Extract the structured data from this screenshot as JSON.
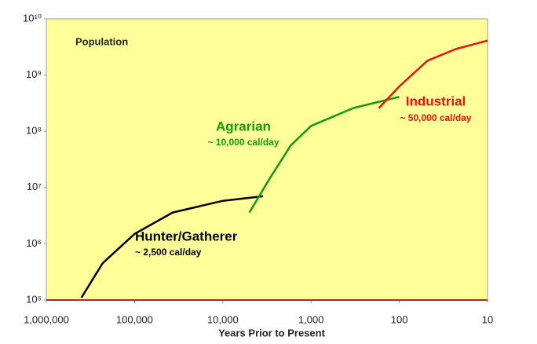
{
  "chart_data": {
    "type": "line",
    "x_label": "Years Prior to Present",
    "xscale": "log",
    "yscale": "log",
    "x_reversed": true,
    "xlim": [
      1000000,
      10
    ],
    "xticks": [
      {
        "value": 1000000,
        "label": "1,000,000"
      },
      {
        "value": 100000,
        "label": "100,000"
      },
      {
        "value": 10000,
        "label": "10,000"
      },
      {
        "value": 1000,
        "label": "1,000"
      },
      100,
      10
    ],
    "ylim": [
      100000,
      10000000000
    ],
    "yticks": [
      {
        "value": 100000,
        "label": "10⁵"
      },
      {
        "value": 1000000,
        "label": "10⁶"
      },
      {
        "value": 10000000,
        "label": "10⁷"
      },
      {
        "value": 100000000,
        "label": "10⁸"
      },
      {
        "value": 1000000000,
        "label": "10⁹"
      },
      {
        "value": 10000000000,
        "label": "10¹⁰"
      }
    ],
    "plot_background": "#ffff99",
    "series": [
      {
        "name": "Hunter/Gatherer",
        "color": "#000000",
        "x": [
          400000,
          230000,
          100000,
          37000,
          10000,
          3500
        ],
        "values": [
          110000,
          450000,
          1500000,
          3600000,
          5800000,
          7000000
        ]
      },
      {
        "name": "Agrarian",
        "color": "#119911",
        "x": [
          5000,
          2900,
          1700,
          1000,
          330,
          100
        ],
        "values": [
          3600000,
          15000000,
          56000000,
          125000000,
          260000000,
          410000000
        ]
      },
      {
        "name": "Industrial",
        "color": "#ee1111",
        "x": [
          170,
          100,
          48,
          23,
          10
        ],
        "values": [
          260000000,
          630000000,
          1800000000,
          2900000000,
          4100000000
        ]
      }
    ],
    "annotations": [
      {
        "text": "Population",
        "color": "#222222"
      },
      {
        "text": "Hunter/Gatherer",
        "color": "#000000"
      },
      {
        "text": "~ 2,500 cal/day",
        "color": "#000000"
      },
      {
        "text": "Agrarian",
        "color": "#119911"
      },
      {
        "text": "~ 10,000 cal/day",
        "color": "#119911"
      },
      {
        "text": "Industrial",
        "color": "#ee1111"
      },
      {
        "text": "~ 50,000 cal/day",
        "color": "#ee1111"
      }
    ]
  }
}
